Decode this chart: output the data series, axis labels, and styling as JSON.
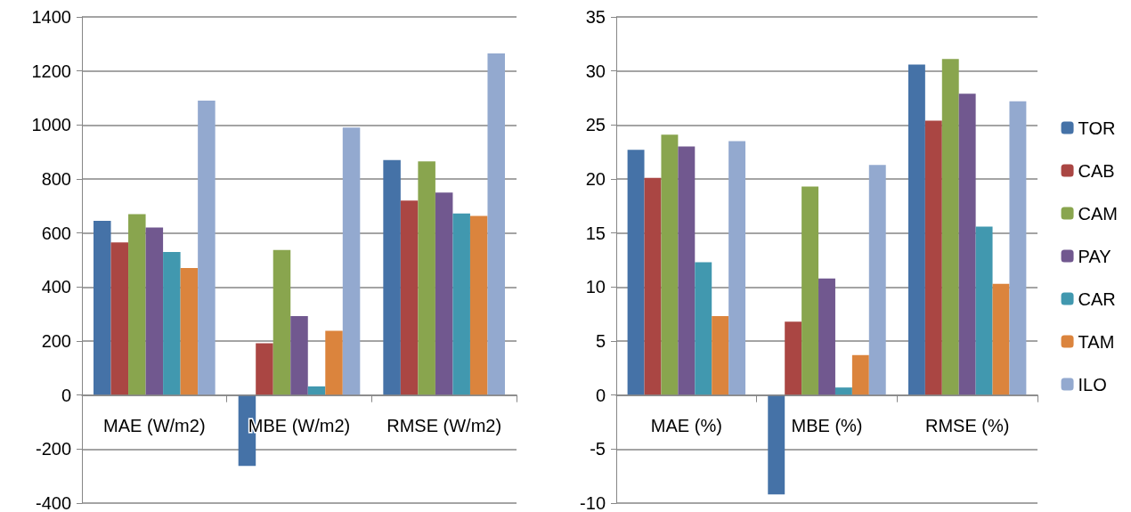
{
  "chart_data": [
    {
      "type": "bar",
      "categories": [
        "MAE (W/m2)",
        "MBE (W/m2)",
        "RMSE (W/m2)"
      ],
      "series": [
        {
          "color": "#4572a7",
          "values": [
            645,
            -262,
            870
          ]
        },
        {
          "color": "#aa4643",
          "values": [
            565,
            192,
            720
          ]
        },
        {
          "color": "#89a54e",
          "values": [
            670,
            537,
            865
          ]
        },
        {
          "color": "#71588f",
          "values": [
            620,
            292,
            750
          ]
        },
        {
          "color": "#4198af",
          "values": [
            530,
            32,
            672
          ]
        },
        {
          "color": "#db843d",
          "values": [
            470,
            238,
            663
          ]
        },
        {
          "color": "#93a9cf",
          "values": [
            1090,
            990,
            1265
          ]
        }
      ],
      "ylim": [
        -400,
        1400
      ],
      "yticks": [
        -400,
        -200,
        0,
        200,
        400,
        600,
        800,
        1000,
        1200,
        1400
      ],
      "grid": "y",
      "legend": false
    },
    {
      "type": "bar",
      "categories": [
        "MAE (%)",
        "MBE (%)",
        "RMSE (%)"
      ],
      "series": [
        {
          "name": "TOR",
          "color": "#4572a7",
          "values": [
            22.7,
            -9.2,
            30.6
          ]
        },
        {
          "name": "CAB",
          "color": "#aa4643",
          "values": [
            20.1,
            6.8,
            25.4
          ]
        },
        {
          "name": "CAM",
          "color": "#89a54e",
          "values": [
            24.1,
            19.3,
            31.1
          ]
        },
        {
          "name": "PAY",
          "color": "#71588f",
          "values": [
            23.0,
            10.8,
            27.9
          ]
        },
        {
          "name": "CAR",
          "color": "#4198af",
          "values": [
            12.3,
            0.7,
            15.6
          ]
        },
        {
          "name": "TAM",
          "color": "#db843d",
          "values": [
            7.3,
            3.7,
            10.3
          ]
        },
        {
          "name": "ILO",
          "color": "#93a9cf",
          "values": [
            23.5,
            21.3,
            27.2
          ]
        }
      ],
      "ylim": [
        -10,
        35
      ],
      "yticks": [
        -10,
        -5,
        0,
        5,
        10,
        15,
        20,
        25,
        30,
        35
      ],
      "grid": "y",
      "legend": "right"
    }
  ]
}
